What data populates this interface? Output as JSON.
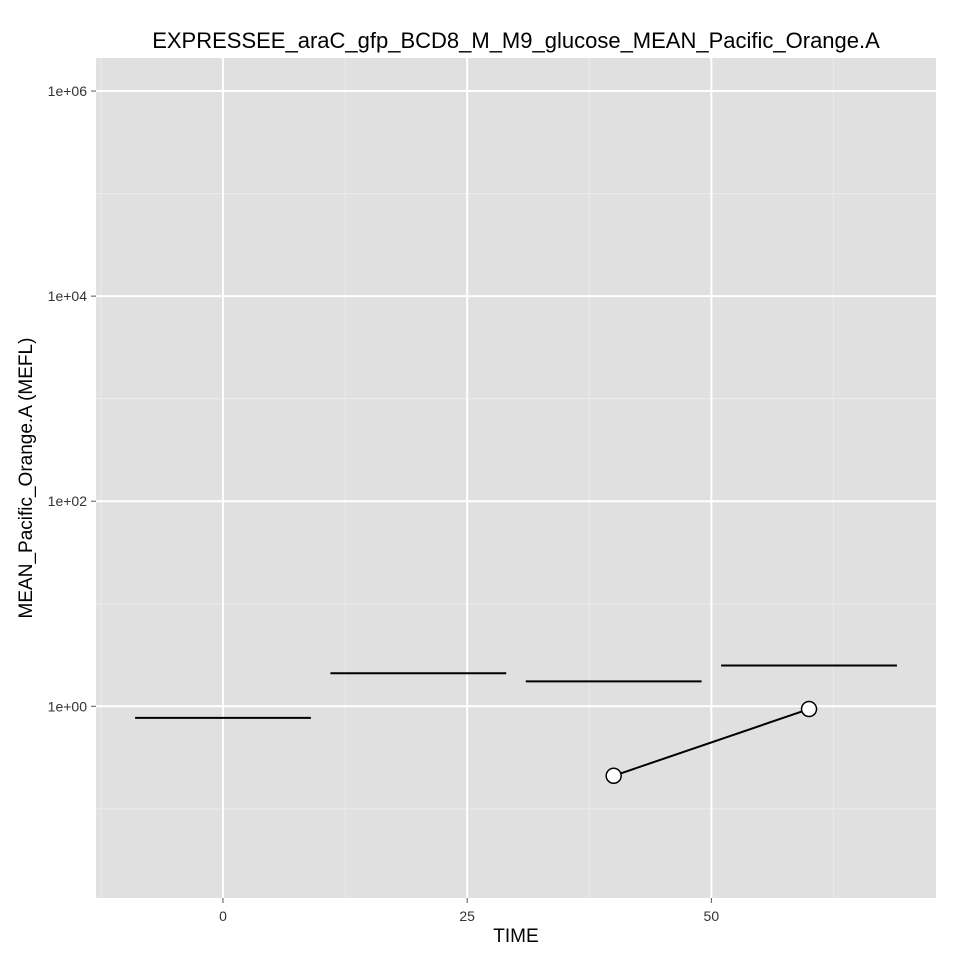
{
  "chart_data": {
    "type": "line",
    "title": "EXPRESSEE_araC_gfp_BCD8_M_M9_glucose_MEAN_Pacific_Orange.A",
    "xlabel": "TIME",
    "ylabel": "MEAN_Pacific_Orange.A  (MEFL)",
    "x_scale": "linear",
    "y_scale": "log10",
    "xlim": [
      -13,
      73
    ],
    "ylim": [
      0.0135,
      2100000
    ],
    "x_ticks": [
      0,
      25,
      50
    ],
    "x_tick_labels": [
      "0",
      "25",
      "50"
    ],
    "y_ticks": [
      1,
      100,
      10000,
      1000000
    ],
    "y_tick_labels": [
      "1e+00",
      "1e+02",
      "1e+04",
      "1e+06"
    ],
    "grid": true,
    "legend": "none",
    "colors": {
      "panel": "#e0e0e0",
      "line": "#000000",
      "point_fill": "#ffffff"
    },
    "reference_segments": [
      {
        "x_start": -9,
        "x_end": 9,
        "y": 0.77
      },
      {
        "x_start": 11,
        "x_end": 29,
        "y": 2.1
      },
      {
        "x_start": 31,
        "x_end": 49,
        "y": 1.75
      },
      {
        "x_start": 51,
        "x_end": 69,
        "y": 2.5
      }
    ],
    "series": [
      {
        "x": [
          40,
          60
        ],
        "values": [
          0.21,
          0.94
        ]
      }
    ]
  }
}
